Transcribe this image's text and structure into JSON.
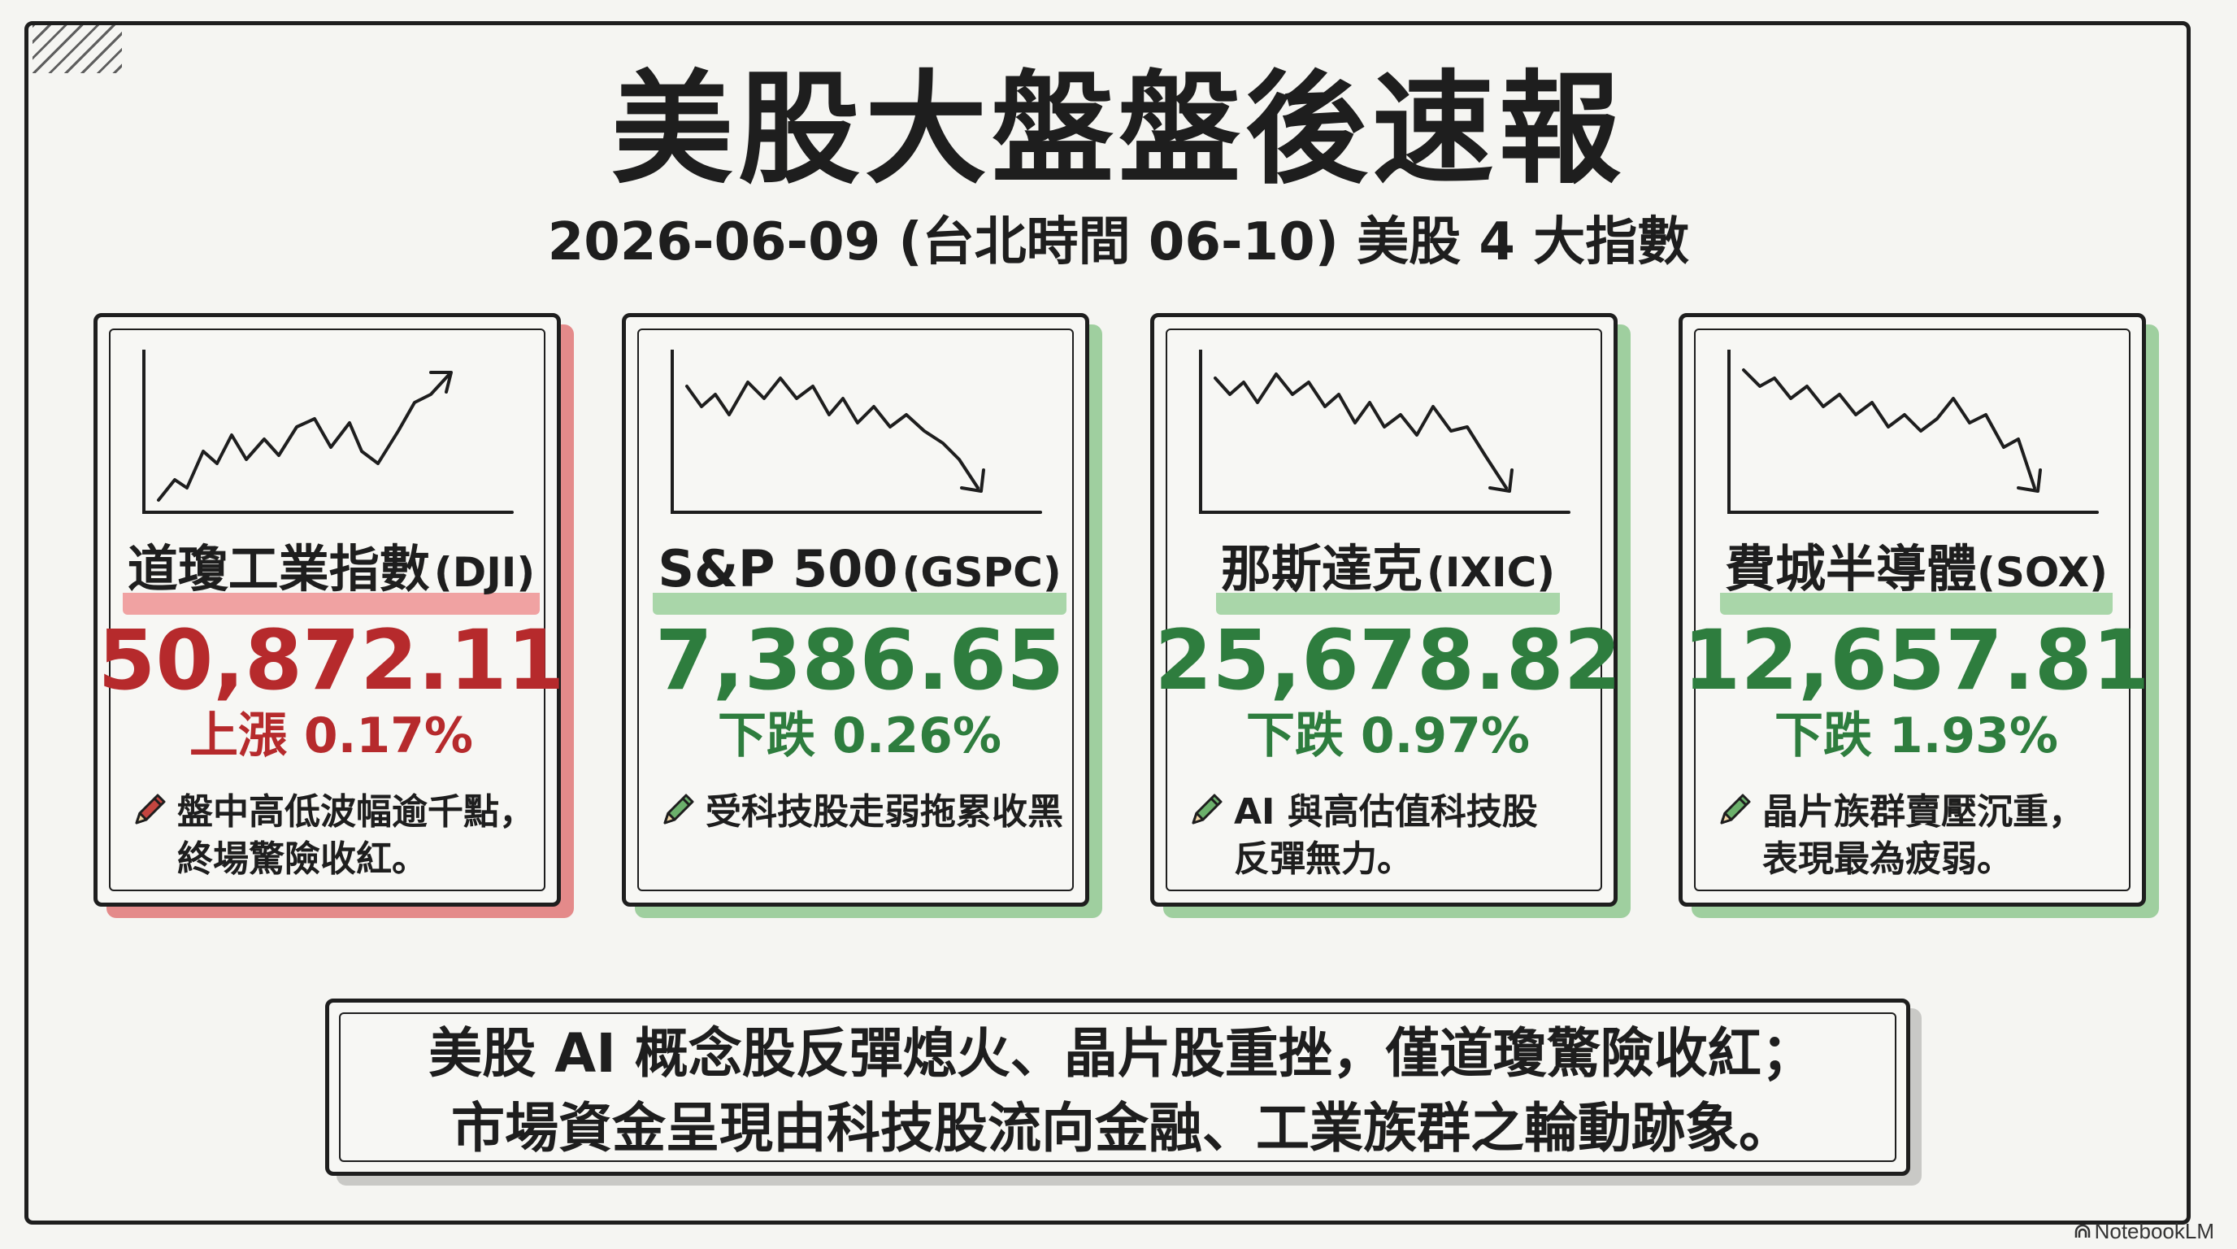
{
  "header": {
    "title": "美股大盤盤後速報",
    "subtitle": "2026-06-09 (台北時間 06-10) 美股 4 大指數"
  },
  "cards": [
    {
      "name": "道瓊工業指數",
      "code": "(DJI)",
      "value": "50,872.11",
      "change": "上漲 0.17%",
      "direction": "up",
      "color": "#b62a2c",
      "note": "盤中高低波幅逾千點，\n終場驚險收紅。",
      "icon": "pencil-icon"
    },
    {
      "name": "S&P 500",
      "code": "(GSPC)",
      "value": "7,386.65",
      "change": "下跌 0.26%",
      "direction": "down",
      "color": "#2e7d3e",
      "note": "受科技股走弱拖累收黑",
      "icon": "pencil-icon"
    },
    {
      "name": "那斯達克",
      "code": "(IXIC)",
      "value": "25,678.82",
      "change": "下跌 0.97%",
      "direction": "down",
      "color": "#2e7d3e",
      "note": "AI 與高估值科技股\n反彈無力。",
      "icon": "pencil-icon"
    },
    {
      "name": "費城半導體",
      "code": "(SOX)",
      "value": "12,657.81",
      "change": "下跌 1.93%",
      "direction": "down",
      "color": "#2e7d3e",
      "note": "晶片族群賣壓沉重，\n表現最為疲弱。",
      "icon": "pencil-icon"
    }
  ],
  "summary": {
    "line1": "美股 AI 概念股反彈熄火、晶片股重挫，僅道瓊驚險收紅；",
    "line2": "市場資金呈現由科技股流向金融、工業族群之輪動跡象。"
  },
  "brand": {
    "label": "NotebookLM",
    "icon": "notebooklm-logo-icon"
  },
  "colors": {
    "up": "#b62a2c",
    "down": "#2e7d3e",
    "up_shadow": "#e48a8a",
    "down_shadow": "#9fcf9f",
    "ink": "#1e1e1e",
    "paper": "#f5f5f2"
  }
}
